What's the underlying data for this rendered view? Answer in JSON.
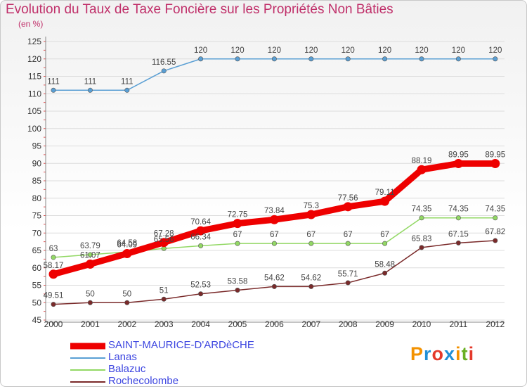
{
  "chart_data": {
    "type": "line",
    "title": "Evolution du Taux de Taxe Foncière sur les Propriétés Non Bâties",
    "ylabel": "(en %)",
    "xlabel": "",
    "x": [
      "2000",
      "2001",
      "2002",
      "2003",
      "2004",
      "2005",
      "2006",
      "2007",
      "2008",
      "2009",
      "2010",
      "2011",
      "2012"
    ],
    "ylim": [
      45,
      125
    ],
    "yticks": [
      45,
      50,
      55,
      60,
      65,
      70,
      75,
      80,
      85,
      90,
      95,
      100,
      105,
      110,
      115,
      120,
      125
    ],
    "series": [
      {
        "name": "SAINT-MAURICE-D'ARDèCHE",
        "color": "#ee0000",
        "values": [
          58.17,
          61.07,
          64.09,
          67.28,
          70.64,
          72.75,
          73.84,
          75.3,
          77.56,
          79.11,
          88.19,
          89.95,
          89.95
        ],
        "labels": [
          "58.17",
          "61.07",
          "64.09",
          "67.28",
          "70.64",
          "72.75",
          "73.84",
          "75.3",
          "77.56",
          "79.11",
          "88.19",
          "89.95",
          "89.95"
        ]
      },
      {
        "name": "Lanas",
        "color": "#5a9fd4",
        "values": [
          111,
          111,
          111,
          116.55,
          120,
          120,
          120,
          120,
          120,
          120,
          120,
          120,
          120
        ],
        "labels": [
          "111",
          "111",
          "111",
          "116.55",
          "120",
          "120",
          "120",
          "120",
          "120",
          "120",
          "120",
          "120",
          "120"
        ]
      },
      {
        "name": "Balazuc",
        "color": "#92d864",
        "values": [
          63,
          63.79,
          64.58,
          65.56,
          66.34,
          67,
          67,
          67,
          67,
          67,
          74.35,
          74.35,
          74.35
        ],
        "labels": [
          "63",
          "63.79",
          "64.58",
          "65.56",
          "66.34",
          "67",
          "67",
          "67",
          "67",
          "67",
          "74.35",
          "74.35",
          "74.35"
        ]
      },
      {
        "name": "Rochecolombe",
        "color": "#7a2a2a",
        "values": [
          49.51,
          50,
          50,
          51,
          52.53,
          53.58,
          54.62,
          54.62,
          55.71,
          58.48,
          65.83,
          67.15,
          67.82
        ],
        "labels": [
          "49.51",
          "50",
          "50",
          "51",
          "52.53",
          "53.58",
          "54.62",
          "54.62",
          "55.71",
          "58.48",
          "65.83",
          "67.15",
          "67.82"
        ]
      }
    ]
  },
  "legend": {
    "items": [
      {
        "label": "SAINT-MAURICE-D'ARDèCHE"
      },
      {
        "label": "Lanas"
      },
      {
        "label": "Balazuc"
      },
      {
        "label": "Rochecolombe"
      }
    ]
  },
  "brand": {
    "text": "Proxiti",
    "colors": [
      "#f39200",
      "#1f8fd6",
      "#e4392b",
      "#1f8fd6",
      "#f39200",
      "#6ab023",
      "#e4392b"
    ]
  }
}
